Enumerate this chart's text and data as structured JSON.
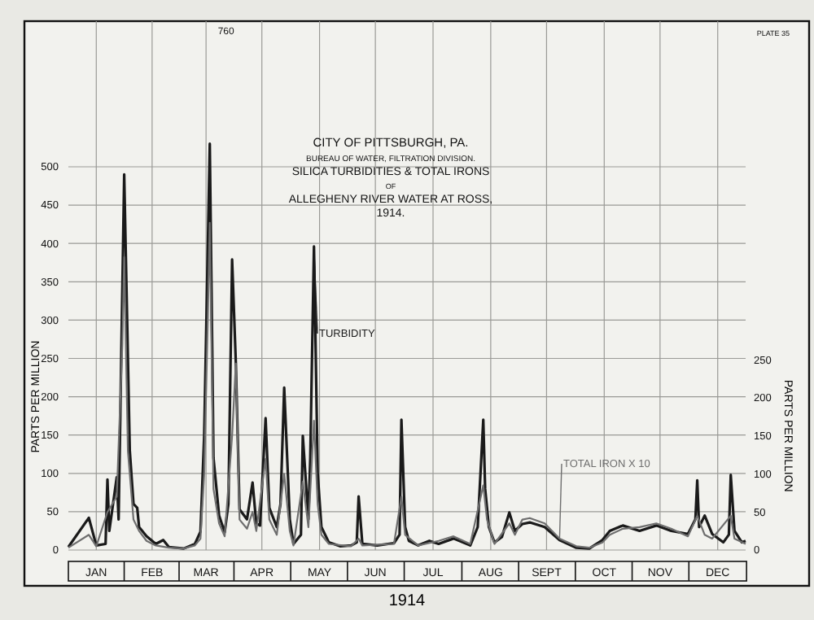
{
  "chart_data": {
    "type": "line",
    "title": "CITY OF PITTSBURGH, PA.",
    "subtitle": "BUREAU OF WATER, FILTRATION DIVISION.\nSILICA TURBIDITIES & TOTAL IRONS\nOF\nALLEGHENY RIVER WATER AT ROSS,\n1914.",
    "xlabel": "1914",
    "ylabel": "PARTS PER MILLION",
    "y2label": "PARTS PER MILLION",
    "x": [
      "--01-01",
      "--01-12",
      "--01-16",
      "--01-21",
      "--01-22",
      "--01-23",
      "--01-27",
      "--01-28",
      "--01-31",
      "--02-02",
      "--02-03",
      "--02-05",
      "--02-07",
      "--02-08",
      "--02-12",
      "--02-17",
      "--02-21",
      "--02-24",
      "--03-04",
      "--03-10",
      "--03-13",
      "--03-15",
      "--03-18",
      "--03-20",
      "--03-23",
      "--03-26",
      "--03-28",
      "--03-30",
      "--04-01",
      "--04-03",
      "--04-07",
      "--04-10",
      "--04-12",
      "--04-14",
      "--04-17",
      "--04-19",
      "--04-23",
      "--04-25",
      "--04-27",
      "--04-30",
      "--05-02",
      "--05-06",
      "--05-07",
      "--05-10",
      "--05-11",
      "--05-13",
      "--05-15",
      "--05-17",
      "--05-21",
      "--05-27",
      "--06-02",
      "--06-05",
      "--06-06",
      "--06-08",
      "--06-16",
      "--06-25",
      "--06-28",
      "--06-29",
      "--07-01",
      "--07-03",
      "--07-08",
      "--07-14",
      "--07-19",
      "--07-27",
      "--08-05",
      "--08-09",
      "--08-12",
      "--08-13",
      "--08-15",
      "--08-18",
      "--08-22",
      "--08-26",
      "--08-29",
      "--09-02",
      "--09-06",
      "--09-14",
      "--09-22",
      "--10-01",
      "--10-08",
      "--10-15",
      "--10-19",
      "--10-26",
      "--11-04",
      "--11-13",
      "--11-21",
      "--11-30",
      "--12-04",
      "--12-05",
      "--12-06",
      "--12-09",
      "--12-13",
      "--12-19",
      "--12-22",
      "--12-23",
      "--12-25",
      "--12-29",
      "--12-31"
    ],
    "series": [
      {
        "name": "TURBIDITY",
        "color": "#1a1a1a",
        "values": [
          4,
          42,
          6,
          8,
          92,
          25,
          95,
          40,
          490,
          250,
          130,
          60,
          55,
          30,
          18,
          8,
          13,
          4,
          2,
          8,
          24,
          150,
          530,
          120,
          45,
          23,
          60,
          379,
          245,
          53,
          40,
          88,
          35,
          32,
          172,
          55,
          30,
          60,
          212,
          40,
          8,
          20,
          149,
          40,
          120,
          396,
          100,
          30,
          10,
          5,
          6,
          10,
          70,
          8,
          6,
          9,
          20,
          170,
          30,
          12,
          6,
          12,
          8,
          15,
          6,
          30,
          170,
          80,
          30,
          10,
          17,
          49,
          25,
          34,
          36,
          30,
          13,
          3,
          2,
          13,
          25,
          32,
          25,
          32,
          25,
          21,
          40,
          91,
          30,
          45,
          21,
          10,
          20,
          98,
          25,
          10,
          12
        ]
      },
      {
        "name": "TOTAL IRON X 10",
        "color": "#6e6e6e",
        "axis": "y2",
        "x": [
          "--01-01",
          "--01-12",
          "--01-16",
          "--01-22",
          "--01-27",
          "--01-30",
          "--01-31",
          "--02-02",
          "--02-05",
          "--02-08",
          "--02-12",
          "--02-17",
          "--02-24",
          "--03-04",
          "--03-10",
          "--03-13",
          "--03-15",
          "--03-17",
          "--03-18",
          "--03-20",
          "--03-23",
          "--03-26",
          "--03-30",
          "--04-01",
          "--04-03",
          "--04-07",
          "--04-10",
          "--04-12",
          "--04-17",
          "--04-19",
          "--04-23",
          "--04-27",
          "--04-30",
          "--05-02",
          "--05-07",
          "--05-10",
          "--05-13",
          "--05-15",
          "--05-17",
          "--05-21",
          "--06-02",
          "--06-06",
          "--06-08",
          "--06-25",
          "--06-29",
          "--07-01",
          "--07-08",
          "--07-19",
          "--07-27",
          "--08-05",
          "--08-12",
          "--08-14",
          "--08-18",
          "--08-26",
          "--08-29",
          "--09-02",
          "--09-06",
          "--09-14",
          "--09-22",
          "--10-01",
          "--10-08",
          "--10-15",
          "--10-19",
          "--10-26",
          "--11-04",
          "--11-13",
          "--11-21",
          "--11-30",
          "--12-05",
          "--12-09",
          "--12-13",
          "--12-23",
          "--12-25",
          "--12-31"
        ],
        "values": [
          3,
          20,
          5,
          50,
          70,
          270,
          385,
          130,
          40,
          25,
          12,
          6,
          3,
          2,
          6,
          15,
          100,
          310,
          430,
          80,
          35,
          18,
          150,
          245,
          40,
          28,
          50,
          25,
          120,
          40,
          20,
          100,
          25,
          6,
          90,
          30,
          170,
          60,
          20,
          8,
          5,
          15,
          6,
          8,
          70,
          20,
          6,
          12,
          18,
          8,
          85,
          40,
          8,
          35,
          20,
          40,
          42,
          35,
          15,
          5,
          3,
          10,
          20,
          28,
          30,
          35,
          28,
          18,
          45,
          20,
          15,
          45,
          15,
          8
        ]
      }
    ],
    "xlim": [
      "--01-01",
      "--12-31"
    ],
    "xticks": [
      {
        "value": "--01-16",
        "label": "JAN"
      },
      {
        "value": "--02-15",
        "label": "FEB"
      },
      {
        "value": "--03-16",
        "label": "MAR"
      },
      {
        "value": "--04-15",
        "label": "APR"
      },
      {
        "value": "--05-16",
        "label": "MAY"
      },
      {
        "value": "--06-15",
        "label": "JUN"
      },
      {
        "value": "--07-16",
        "label": "JUL"
      },
      {
        "value": "--08-16",
        "label": "AUG"
      },
      {
        "value": "--09-15",
        "label": "SEPT"
      },
      {
        "value": "--10-16",
        "label": "OCT"
      },
      {
        "value": "--11-15",
        "label": "NOV"
      },
      {
        "value": "--12-16",
        "label": "DEC"
      }
    ],
    "ylim": [
      0,
      690
    ],
    "yticks": [
      0,
      50,
      100,
      150,
      200,
      250,
      300,
      350,
      400,
      450,
      500
    ],
    "y2lim": [
      0,
      695
    ],
    "y2ticks": [
      0,
      50,
      100,
      150,
      200,
      250
    ],
    "grid": true,
    "line_style": "solid",
    "marker": "none",
    "annotations": [
      "760",
      "PLATE 35"
    ]
  }
}
